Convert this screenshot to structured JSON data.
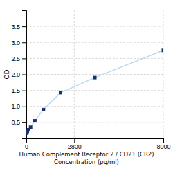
{
  "chart_data": {
    "type": "line",
    "xlabel": [
      "Human Complement Receptor 2 / CD21 (CR2)",
      "Concentration (pg/ml)"
    ],
    "ylabel": "OD",
    "x": [
      0,
      31.25,
      62.5,
      125,
      250,
      500,
      1000,
      2000,
      4000,
      8000
    ],
    "values": [
      0.167,
      0.18,
      0.22,
      0.27,
      0.35,
      0.55,
      0.9,
      1.43,
      1.9,
      2.75
    ],
    "color": "#b8d8f0",
    "colors": [
      "#1a2f6e",
      "#1a2f6e",
      "#1a2f6e",
      "#1a2f6e",
      "#1a2f6e",
      "#1a2f6e",
      "#1a2f6e",
      "#1a2f6e",
      "#1a2f6e",
      "#1a2f6e"
    ],
    "marker": "square",
    "xlim": [
      0,
      8000
    ],
    "ylim": [
      0,
      4.0
    ],
    "xticks": [
      0,
      2800,
      8000
    ],
    "yticks": [
      0.5,
      {
        "value": 1.0,
        "label": "1.0"
      },
      1.5,
      {
        "value": 2.0,
        "label": "2.0"
      },
      2.5,
      {
        "value": 3.0,
        "label": "3.0"
      },
      3.5
    ],
    "grid": true
  }
}
